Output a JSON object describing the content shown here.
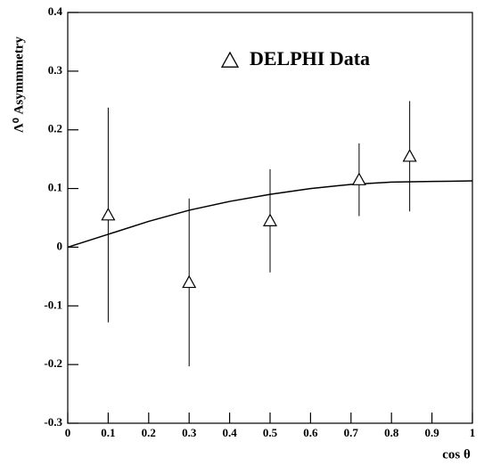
{
  "chart_data": {
    "type": "scatter",
    "xlabel": "cos θ",
    "ylabel": "Λ⁰ Asymmmetry",
    "xlim": [
      0,
      1
    ],
    "ylim": [
      -0.3,
      0.4
    ],
    "xticks": [
      0,
      0.1,
      0.2,
      0.3,
      0.4,
      0.5,
      0.6,
      0.7,
      0.8,
      0.9,
      1
    ],
    "yticks": [
      -0.3,
      -0.2,
      -0.1,
      0,
      0.1,
      0.2,
      0.3,
      0.4
    ],
    "series": [
      {
        "name": "DELPHI Data",
        "color": "#000000",
        "marker": "triangle",
        "x": [
          0.1,
          0.3,
          0.5,
          0.72,
          0.845
        ],
        "values": [
          0.055,
          -0.06,
          0.045,
          0.115,
          0.155
        ],
        "errors": [
          0.183,
          0.143,
          0.088,
          0.062,
          0.094
        ]
      }
    ],
    "fit": {
      "color": "#000000",
      "x": [
        0,
        0.1,
        0.2,
        0.3,
        0.4,
        0.5,
        0.6,
        0.7,
        0.8,
        0.9,
        1
      ],
      "values": [
        0,
        0.022,
        0.044,
        0.063,
        0.078,
        0.09,
        0.1,
        0.107,
        0.111,
        0.112,
        0.113
      ]
    }
  }
}
